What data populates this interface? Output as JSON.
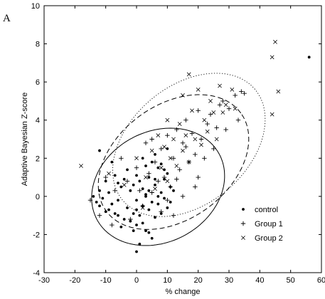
{
  "chart_data": {
    "type": "scatter",
    "panel_label": "A",
    "xlabel": "% change",
    "ylabel": "Adaptive Bayesian Z-score",
    "xlim": [
      -30,
      60
    ],
    "ylim": [
      -4,
      10
    ],
    "x_ticks": [
      -30,
      -20,
      -10,
      0,
      10,
      20,
      30,
      40,
      50,
      60
    ],
    "y_ticks": [
      -4,
      -2,
      0,
      2,
      4,
      6,
      8,
      10
    ],
    "grid": false,
    "legend_position": "bottom-right",
    "series": [
      {
        "name": "control",
        "marker": "dot",
        "color": "#000000",
        "points": [
          [
            -12,
            -0.5
          ],
          [
            -10,
            -0.8
          ],
          [
            -9,
            0.2
          ],
          [
            -8,
            -0.4
          ],
          [
            -7,
            1.1
          ],
          [
            -6,
            -0.2
          ],
          [
            -5,
            0.5
          ],
          [
            -4,
            -1.2
          ],
          [
            -3,
            -0.6
          ],
          [
            -2,
            0.3
          ],
          [
            -1,
            -0.9
          ],
          [
            0,
            -1.5
          ],
          [
            0,
            -0.2
          ],
          [
            1,
            0.8
          ],
          [
            1,
            -1.0
          ],
          [
            2,
            -0.5
          ],
          [
            2,
            0.4
          ],
          [
            3,
            -1.8
          ],
          [
            3,
            0.1
          ],
          [
            4,
            -0.7
          ],
          [
            4,
            1.0
          ],
          [
            5,
            -0.3
          ],
          [
            5,
            -2.2
          ],
          [
            6,
            0.6
          ],
          [
            6,
            -1.1
          ],
          [
            7,
            1.5
          ],
          [
            7,
            -0.4
          ],
          [
            8,
            0.2
          ],
          [
            8,
            -0.9
          ],
          [
            9,
            0.9
          ],
          [
            9,
            -0.1
          ],
          [
            10,
            1.2
          ],
          [
            10,
            -0.6
          ],
          [
            11,
            0.5
          ],
          [
            -8,
            1.8
          ],
          [
            -10,
            0.8
          ],
          [
            -11,
            -0.1
          ],
          [
            -12,
            0.3
          ],
          [
            -13,
            -0.3
          ],
          [
            -6,
            -1.0
          ],
          [
            -5,
            -1.6
          ],
          [
            -3,
            1.4
          ],
          [
            -1,
            0.6
          ],
          [
            0,
            1.1
          ],
          [
            1,
            -2.5
          ],
          [
            2,
            -1.4
          ],
          [
            3,
            1.6
          ],
          [
            4,
            -1.9
          ],
          [
            5,
            1.8
          ],
          [
            6,
            2.2
          ],
          [
            7,
            0.0
          ],
          [
            8,
            1.7
          ],
          [
            -4,
            0.9
          ],
          [
            -2,
            -1.3
          ],
          [
            -9,
            -0.7
          ],
          [
            -7,
            -0.9
          ],
          [
            -14,
            0.0
          ],
          [
            -12,
            2.4
          ],
          [
            0,
            -2.9
          ],
          [
            12,
            0.3
          ],
          [
            6,
            0.9
          ],
          [
            3,
            0.0
          ],
          [
            -1,
            -1.8
          ],
          [
            2,
            2.0
          ],
          [
            4,
            0.3
          ],
          [
            -6,
            0.7
          ],
          [
            9,
            1.4
          ],
          [
            11,
            -0.3
          ],
          [
            10,
            2.5
          ],
          [
            0,
            -0.7
          ],
          [
            56,
            7.3
          ]
        ]
      },
      {
        "name": "Group 1",
        "marker": "plus",
        "color": "#000000",
        "points": [
          [
            -15,
            -0.2
          ],
          [
            -10,
            1.0
          ],
          [
            -8,
            -1.5
          ],
          [
            -5,
            2.0
          ],
          [
            -3,
            0.8
          ],
          [
            0,
            1.5
          ],
          [
            2,
            -0.5
          ],
          [
            3,
            2.8
          ],
          [
            5,
            0.2
          ],
          [
            5,
            3.0
          ],
          [
            6,
            1.8
          ],
          [
            8,
            -0.8
          ],
          [
            8,
            2.5
          ],
          [
            9,
            1.0
          ],
          [
            10,
            3.2
          ],
          [
            11,
            0.5
          ],
          [
            12,
            2.0
          ],
          [
            12,
            -1.0
          ],
          [
            13,
            3.5
          ],
          [
            14,
            1.4
          ],
          [
            15,
            2.8
          ],
          [
            15,
            0.0
          ],
          [
            16,
            4.0
          ],
          [
            17,
            1.8
          ],
          [
            18,
            3.3
          ],
          [
            19,
            2.2
          ],
          [
            20,
            4.5
          ],
          [
            20,
            1.0
          ],
          [
            21,
            3.0
          ],
          [
            22,
            2.0
          ],
          [
            23,
            3.8
          ],
          [
            24,
            4.3
          ],
          [
            25,
            2.5
          ],
          [
            26,
            3.6
          ],
          [
            27,
            4.8
          ],
          [
            28,
            5.0
          ],
          [
            29,
            3.5
          ],
          [
            30,
            4.6
          ],
          [
            32,
            5.3
          ],
          [
            33,
            4.0
          ],
          [
            34,
            5.5
          ],
          [
            35,
            5.4
          ],
          [
            -12,
            -1.0
          ],
          [
            -2,
            -1.2
          ],
          [
            1,
            0.3
          ],
          [
            4,
            1.2
          ],
          [
            7,
            0.8
          ],
          [
            10,
            -0.2
          ],
          [
            13,
            0.9
          ],
          [
            16,
            2.6
          ],
          [
            19,
            0.5
          ],
          [
            -7,
            0.3
          ]
        ]
      },
      {
        "name": "Group 2",
        "marker": "cross",
        "color": "#000000",
        "points": [
          [
            -18,
            1.6
          ],
          [
            -9,
            1.2
          ],
          [
            -4,
            0.6
          ],
          [
            0,
            2.0
          ],
          [
            3,
            1.0
          ],
          [
            5,
            2.4
          ],
          [
            7,
            3.2
          ],
          [
            8,
            1.5
          ],
          [
            9,
            2.6
          ],
          [
            10,
            4.0
          ],
          [
            11,
            2.0
          ],
          [
            12,
            3.0
          ],
          [
            13,
            1.6
          ],
          [
            14,
            3.8
          ],
          [
            15,
            2.4
          ],
          [
            15,
            5.3
          ],
          [
            16,
            3.2
          ],
          [
            17,
            6.4
          ],
          [
            17,
            1.8
          ],
          [
            18,
            4.5
          ],
          [
            19,
            3.0
          ],
          [
            20,
            5.6
          ],
          [
            21,
            2.7
          ],
          [
            22,
            4.0
          ],
          [
            23,
            3.4
          ],
          [
            24,
            5.0
          ],
          [
            25,
            4.4
          ],
          [
            26,
            3.0
          ],
          [
            27,
            5.8
          ],
          [
            28,
            4.4
          ],
          [
            29,
            4.8
          ],
          [
            31,
            5.6
          ],
          [
            32,
            4.6
          ],
          [
            44,
            7.3
          ],
          [
            45,
            8.1
          ],
          [
            46,
            5.5
          ],
          [
            44,
            4.3
          ],
          [
            6,
            0.4
          ],
          [
            2,
            -0.6
          ],
          [
            10,
            0.8
          ]
        ]
      }
    ],
    "ellipses": [
      {
        "group": "control",
        "style": "solid",
        "cx": 7,
        "cy": 0.5,
        "rx": 22.5,
        "ry": 2.9,
        "angle_deg": 28
      },
      {
        "group": "Group 1",
        "style": "dashed",
        "cx": 12,
        "cy": 1.8,
        "rx": 27,
        "ry": 3.0,
        "angle_deg": 36
      },
      {
        "group": "Group 2",
        "style": "dotted",
        "cx": 17,
        "cy": 2.7,
        "rx": 28,
        "ry": 3.1,
        "angle_deg": 40
      }
    ]
  }
}
